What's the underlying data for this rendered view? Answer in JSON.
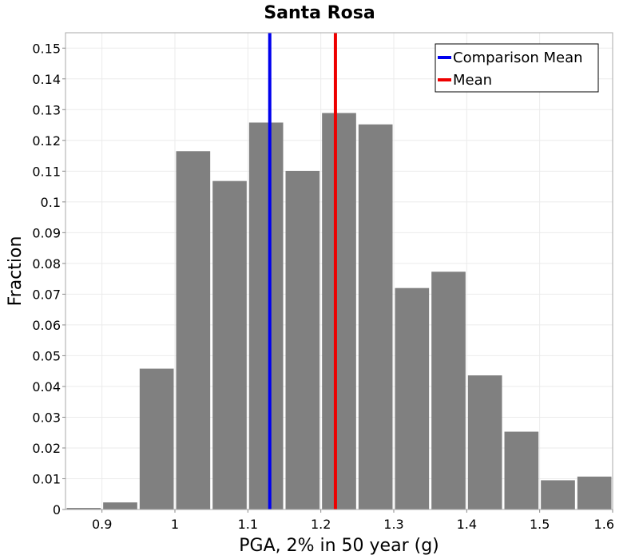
{
  "chart_data": {
    "type": "bar",
    "title": "Santa Rosa",
    "xlabel": "PGA, 2% in 50 year (g)",
    "ylabel": "Fraction",
    "xlim": [
      0.85,
      1.6
    ],
    "ylim": [
      0,
      0.155
    ],
    "bin_width": 0.05,
    "bin_centers": [
      0.875,
      0.925,
      0.975,
      1.025,
      1.075,
      1.125,
      1.175,
      1.225,
      1.275,
      1.325,
      1.375,
      1.425,
      1.475,
      1.525,
      1.575
    ],
    "values": [
      0.0005,
      0.0023,
      0.0458,
      0.1165,
      0.1068,
      0.1258,
      0.1101,
      0.1289,
      0.1252,
      0.072,
      0.0773,
      0.0436,
      0.0253,
      0.0095,
      0.0107
    ],
    "bar_color": "#808080",
    "x_ticks": [
      "0.9",
      "1",
      "1.1",
      "1.2",
      "1.3",
      "1.4",
      "1.5",
      "1.6"
    ],
    "y_ticks": [
      "0",
      "0.01",
      "0.02",
      "0.03",
      "0.04",
      "0.05",
      "0.06",
      "0.07",
      "0.08",
      "0.09",
      "0.1",
      "0.11",
      "0.12",
      "0.13",
      "0.14",
      "0.15"
    ],
    "grid": true,
    "legend_position": "top-right",
    "vertical_lines": [
      {
        "name": "Comparison Mean",
        "x": 1.13,
        "color": "#0000ee"
      },
      {
        "name": "Mean",
        "x": 1.22,
        "color": "#ee0000"
      }
    ]
  }
}
